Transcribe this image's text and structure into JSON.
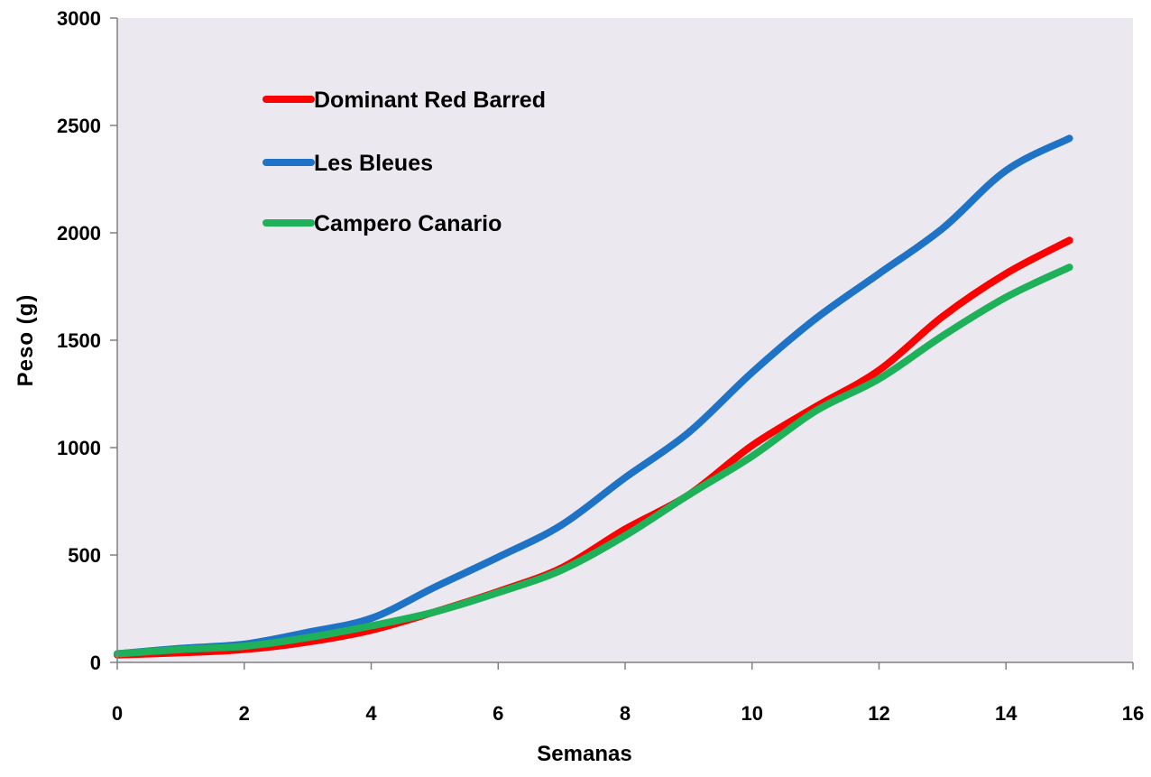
{
  "chart_data": {
    "type": "line",
    "title": "",
    "xlabel": "Semanas",
    "ylabel": "Peso (g)",
    "xlim": [
      0,
      16
    ],
    "ylim": [
      0,
      3000
    ],
    "x_ticks": [
      0,
      2,
      4,
      6,
      8,
      10,
      12,
      14,
      16
    ],
    "y_ticks": [
      0,
      500,
      1000,
      1500,
      2000,
      2500,
      3000
    ],
    "grid": false,
    "legend_position": "top-left",
    "plot_background": "#ebe9ef",
    "x": [
      0,
      1,
      2,
      3,
      4,
      5,
      6,
      7,
      8,
      9,
      10,
      11,
      12,
      13,
      14,
      15
    ],
    "series": [
      {
        "name": "Dominant Red Barred",
        "color": "#ff0000",
        "values": [
          35,
          45,
          60,
          95,
          150,
          235,
          330,
          440,
          620,
          780,
          1010,
          1190,
          1360,
          1610,
          1810,
          1965
        ]
      },
      {
        "name": "Les Bleues",
        "color": "#1f73c6",
        "values": [
          40,
          65,
          85,
          140,
          205,
          350,
          490,
          640,
          860,
          1070,
          1350,
          1600,
          1810,
          2020,
          2290,
          2440
        ]
      },
      {
        "name": "Campero Canario",
        "color": "#1eb15a",
        "values": [
          40,
          60,
          75,
          115,
          170,
          235,
          325,
          430,
          590,
          780,
          960,
          1170,
          1320,
          1520,
          1700,
          1840
        ]
      }
    ]
  }
}
